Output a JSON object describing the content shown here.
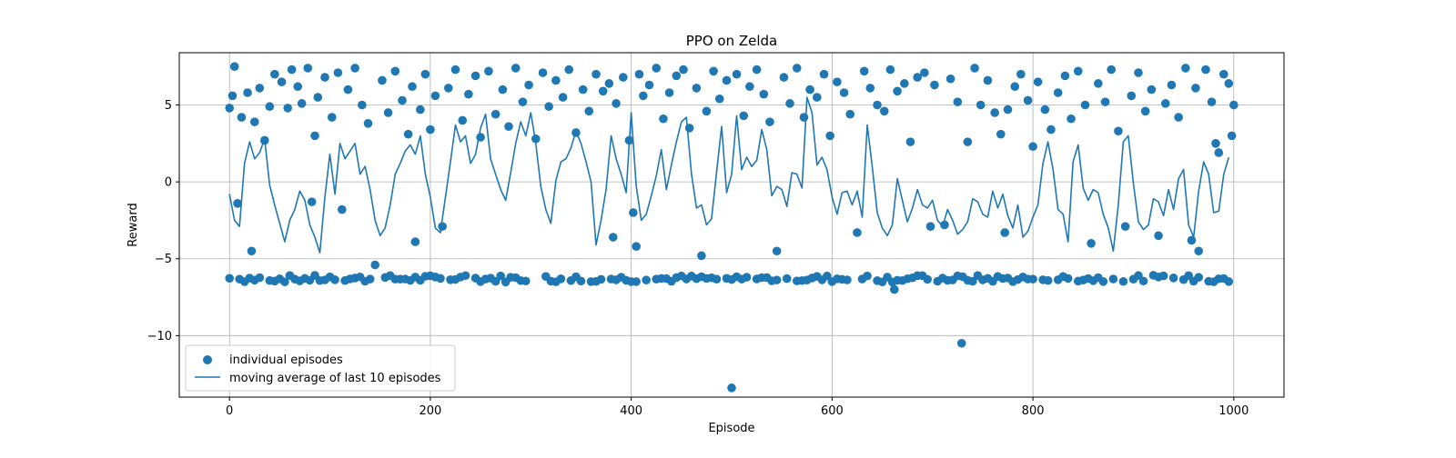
{
  "chart_data": {
    "type": "scatter",
    "title": "PPO on Zelda",
    "xlabel": "Episode",
    "ylabel": "Reward",
    "xlim": [
      -50,
      1050
    ],
    "ylim": [
      -14.0,
      8.4
    ],
    "xticks": [
      0,
      200,
      400,
      600,
      800,
      1000
    ],
    "yticks": [
      -10,
      -5,
      0,
      5
    ],
    "xtick_labels": [
      "0",
      "200",
      "400",
      "600",
      "800",
      "1000"
    ],
    "ytick_labels": [
      "−10",
      "−5",
      "0",
      "5"
    ],
    "grid": true,
    "legend_position": "lower-left",
    "colors": {
      "series": "#1f77b4",
      "grid": "#b0b0b0",
      "axes": "#000000"
    },
    "series": [
      {
        "name": "individual episodes",
        "kind": "scatter",
        "x": [
          0,
          3,
          5,
          8,
          12,
          18,
          22,
          25,
          30,
          35,
          40,
          45,
          52,
          58,
          62,
          68,
          72,
          78,
          82,
          85,
          88,
          95,
          102,
          108,
          112,
          118,
          125,
          132,
          138,
          145,
          152,
          158,
          165,
          172,
          178,
          182,
          185,
          190,
          195,
          200,
          205,
          212,
          218,
          225,
          232,
          238,
          245,
          250,
          258,
          265,
          272,
          278,
          285,
          292,
          298,
          305,
          312,
          318,
          325,
          332,
          338,
          345,
          352,
          358,
          365,
          372,
          378,
          382,
          385,
          392,
          398,
          402,
          405,
          408,
          412,
          418,
          425,
          432,
          438,
          445,
          452,
          458,
          465,
          470,
          475,
          482,
          488,
          495,
          500,
          505,
          512,
          518,
          525,
          532,
          538,
          545,
          552,
          558,
          565,
          572,
          578,
          585,
          592,
          598,
          605,
          612,
          618,
          625,
          632,
          638,
          645,
          652,
          658,
          662,
          665,
          672,
          678,
          685,
          692,
          698,
          702,
          712,
          718,
          725,
          729,
          735,
          742,
          748,
          755,
          762,
          768,
          772,
          775,
          782,
          788,
          795,
          800,
          805,
          812,
          818,
          825,
          832,
          838,
          845,
          852,
          858,
          865,
          872,
          878,
          885,
          892,
          898,
          905,
          912,
          918,
          925,
          932,
          938,
          945,
          952,
          958,
          962,
          965,
          972,
          978,
          982,
          985,
          990,
          995,
          998,
          1000
        ],
        "y": [
          4.8,
          5.6,
          7.5,
          -1.4,
          4.2,
          5.8,
          -4.5,
          3.9,
          6.1,
          2.7,
          4.9,
          7.0,
          6.5,
          4.8,
          7.3,
          6.2,
          5.1,
          7.4,
          -1.3,
          3.0,
          5.5,
          6.8,
          4.2,
          7.1,
          -1.8,
          6.0,
          7.4,
          5.0,
          3.8,
          -5.4,
          6.6,
          4.5,
          7.2,
          5.3,
          3.1,
          6.2,
          -3.9,
          4.7,
          7.0,
          3.4,
          5.6,
          -2.9,
          6.1,
          7.3,
          4.0,
          5.7,
          6.9,
          2.9,
          7.2,
          4.4,
          6.0,
          3.6,
          7.4,
          5.2,
          6.3,
          2.8,
          7.1,
          4.9,
          6.6,
          5.5,
          7.3,
          3.2,
          6.0,
          4.6,
          7.0,
          5.9,
          6.4,
          -3.6,
          5.1,
          6.8,
          2.7,
          -2.0,
          -4.2,
          7.0,
          5.6,
          6.3,
          7.4,
          4.1,
          5.8,
          6.9,
          7.3,
          3.5,
          6.1,
          -4.8,
          4.6,
          7.2,
          5.4,
          6.6,
          -13.4,
          7.0,
          4.3,
          6.2,
          7.3,
          5.7,
          3.9,
          -4.5,
          6.8,
          5.1,
          7.4,
          4.2,
          6.0,
          5.5,
          7.0,
          3.0,
          6.5,
          5.8,
          4.4,
          -3.3,
          7.2,
          6.1,
          5.0,
          4.6,
          7.3,
          -7.0,
          5.9,
          6.4,
          2.6,
          6.8,
          7.1,
          -2.9,
          6.3,
          -2.8,
          6.7,
          5.2,
          -10.5,
          2.6,
          7.4,
          5.0,
          6.6,
          4.5,
          3.1,
          -3.3,
          4.7,
          6.2,
          7.0,
          5.3,
          2.3,
          6.5,
          4.7,
          3.4,
          5.8,
          6.9,
          4.1,
          7.2,
          5.0,
          -4.0,
          6.4,
          5.2,
          7.3,
          3.3,
          -2.9,
          5.6,
          7.1,
          4.6,
          6.0,
          -3.5,
          5.1,
          6.3,
          4.2,
          7.4,
          -3.8,
          6.1,
          -4.5,
          7.3,
          5.2,
          2.5,
          1.9,
          7.0,
          6.4,
          3.0,
          5.0
        ]
      },
      {
        "name": "moving average of last 10 episodes",
        "kind": "line",
        "x": [
          0,
          5,
          10,
          15,
          20,
          25,
          30,
          35,
          40,
          45,
          50,
          55,
          60,
          65,
          70,
          75,
          80,
          85,
          90,
          95,
          100,
          105,
          110,
          115,
          120,
          125,
          130,
          135,
          140,
          145,
          150,
          155,
          160,
          165,
          170,
          175,
          180,
          185,
          190,
          195,
          200,
          205,
          210,
          215,
          220,
          225,
          230,
          235,
          240,
          245,
          250,
          255,
          260,
          265,
          270,
          275,
          280,
          285,
          290,
          295,
          300,
          305,
          310,
          315,
          320,
          325,
          330,
          335,
          340,
          345,
          350,
          355,
          360,
          365,
          370,
          375,
          380,
          385,
          390,
          395,
          400,
          405,
          410,
          415,
          420,
          425,
          430,
          435,
          440,
          445,
          450,
          455,
          460,
          465,
          470,
          475,
          480,
          485,
          490,
          495,
          500,
          505,
          510,
          515,
          520,
          525,
          530,
          535,
          540,
          545,
          550,
          555,
          560,
          565,
          570,
          575,
          580,
          585,
          590,
          595,
          600,
          605,
          610,
          615,
          620,
          625,
          630,
          635,
          640,
          645,
          650,
          655,
          660,
          665,
          670,
          675,
          680,
          685,
          690,
          695,
          700,
          705,
          710,
          715,
          720,
          725,
          730,
          735,
          740,
          745,
          750,
          755,
          760,
          765,
          770,
          775,
          780,
          785,
          790,
          795,
          800,
          805,
          810,
          815,
          820,
          825,
          830,
          835,
          840,
          845,
          850,
          855,
          860,
          865,
          870,
          875,
          880,
          885,
          890,
          895,
          900,
          905,
          910,
          915,
          920,
          925,
          930,
          935,
          940,
          945,
          950,
          955,
          960,
          965,
          970,
          975,
          980,
          985,
          990,
          995
        ],
        "y": [
          -0.8,
          -2.5,
          -2.9,
          1.2,
          2.6,
          1.5,
          1.9,
          2.8,
          -0.2,
          -1.5,
          -2.7,
          -3.9,
          -2.5,
          -1.8,
          -0.6,
          -1.2,
          -2.8,
          -3.6,
          -4.6,
          -1.0,
          1.8,
          -0.8,
          2.5,
          1.5,
          2.0,
          2.5,
          0.5,
          1.0,
          -0.5,
          -2.5,
          -3.5,
          -3.0,
          -1.5,
          0.5,
          1.2,
          2.0,
          2.4,
          1.8,
          3.0,
          0.5,
          -1.0,
          -3.0,
          -3.3,
          -1.0,
          1.3,
          3.7,
          2.6,
          3.0,
          1.2,
          1.8,
          3.5,
          4.4,
          1.5,
          0.5,
          -0.5,
          -1.2,
          0.6,
          2.5,
          3.9,
          3.0,
          4.5,
          2.5,
          -0.3,
          -1.8,
          -2.7,
          0.1,
          1.3,
          1.5,
          2.2,
          3.3,
          2.5,
          1.3,
          0.0,
          -4.1,
          -2.5,
          -0.5,
          3.0,
          1.5,
          0.5,
          -0.7,
          4.5,
          -0.3,
          -2.5,
          -2.1,
          -0.9,
          0.4,
          2.1,
          -0.5,
          1.1,
          2.6,
          3.9,
          4.2,
          0.5,
          -1.7,
          -1.5,
          -2.8,
          -2.4,
          0.6,
          3.6,
          -0.7,
          0.5,
          4.3,
          0.8,
          1.6,
          1.0,
          1.4,
          3.4,
          2.1,
          -0.9,
          -0.3,
          -0.5,
          -1.6,
          0.6,
          0.5,
          -0.4,
          5.5,
          4.5,
          1.1,
          1.6,
          0.8,
          -1.0,
          -2.1,
          -0.7,
          -0.6,
          -1.5,
          -0.6,
          -2.3,
          3.7,
          1.0,
          -2.0,
          -3.0,
          -3.5,
          -2.8,
          0.2,
          -1.2,
          -2.6,
          -1.7,
          -0.5,
          -1.5,
          -1.7,
          -1.2,
          -2.5,
          -2.9,
          -1.8,
          -2.5,
          -3.4,
          -3.1,
          -2.6,
          -1.1,
          -1.3,
          -2.1,
          -2.3,
          -0.6,
          -1.7,
          -0.8,
          -2.2,
          -3.0,
          -1.5,
          -3.6,
          -3.2,
          -2.3,
          -1.5,
          1.2,
          2.6,
          0.8,
          -1.8,
          -2.1,
          -3.9,
          1.3,
          2.4,
          -0.4,
          -1.2,
          -0.5,
          -0.7,
          -2.1,
          -3.0,
          -4.5,
          -1.5,
          2.6,
          3.0,
          -0.1,
          -2.6,
          -3.1,
          -2.8,
          -1.1,
          -1.3,
          -2.2,
          -0.5,
          -1.8,
          0.2,
          0.8,
          -2.8,
          -3.6,
          -0.6,
          1.3,
          0.5,
          -2.0,
          -1.9,
          0.5,
          1.6
        ]
      }
    ],
    "lower_cluster": {
      "description_y_center": -6.3,
      "x_start": 0,
      "x_end": 995,
      "step": 5
    }
  }
}
